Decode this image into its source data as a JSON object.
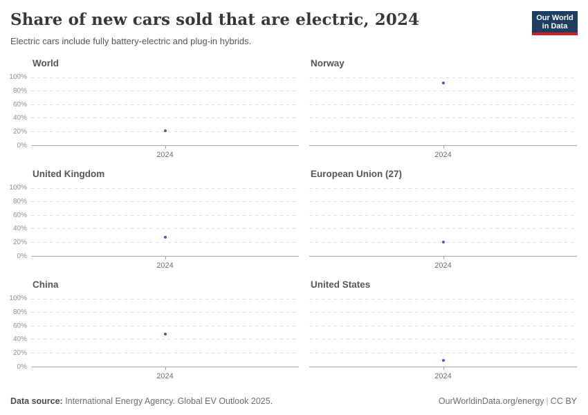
{
  "header": {
    "title": "Share of new cars sold that are electric, 2024",
    "subtitle": "Electric cars include fully battery-electric and plug-in hybrids.",
    "logo": {
      "line1": "Our World",
      "line2": "in Data",
      "bg_color": "#1d3d63",
      "accent_color": "#cc2329"
    }
  },
  "chart_data": {
    "type": "scatter",
    "x": [
      2024
    ],
    "x_tick_label": "2024",
    "ylim": [
      0,
      100
    ],
    "grid": true,
    "y_ticks": [
      {
        "value": 0,
        "label": "0%"
      },
      {
        "value": 20,
        "label": "20%"
      },
      {
        "value": 40,
        "label": "40%"
      },
      {
        "value": 60,
        "label": "60%"
      },
      {
        "value": 80,
        "label": "80%"
      },
      {
        "value": 100,
        "label": "100%"
      }
    ],
    "series": [
      {
        "name": "World",
        "values": [
          22
        ]
      },
      {
        "name": "Norway",
        "values": [
          92
        ]
      },
      {
        "name": "United Kingdom",
        "values": [
          28
        ]
      },
      {
        "name": "European Union (27)",
        "values": [
          21
        ]
      },
      {
        "name": "China",
        "values": [
          48
        ]
      },
      {
        "name": "United States",
        "values": [
          10
        ]
      }
    ],
    "point_color": "#4a5e9e"
  },
  "footer": {
    "source_label": "Data source:",
    "source_text": " International Energy Agency. Global EV Outlook 2025.",
    "link": "OurWorldinData.org/energy",
    "divider": "|",
    "license": "CC BY"
  }
}
